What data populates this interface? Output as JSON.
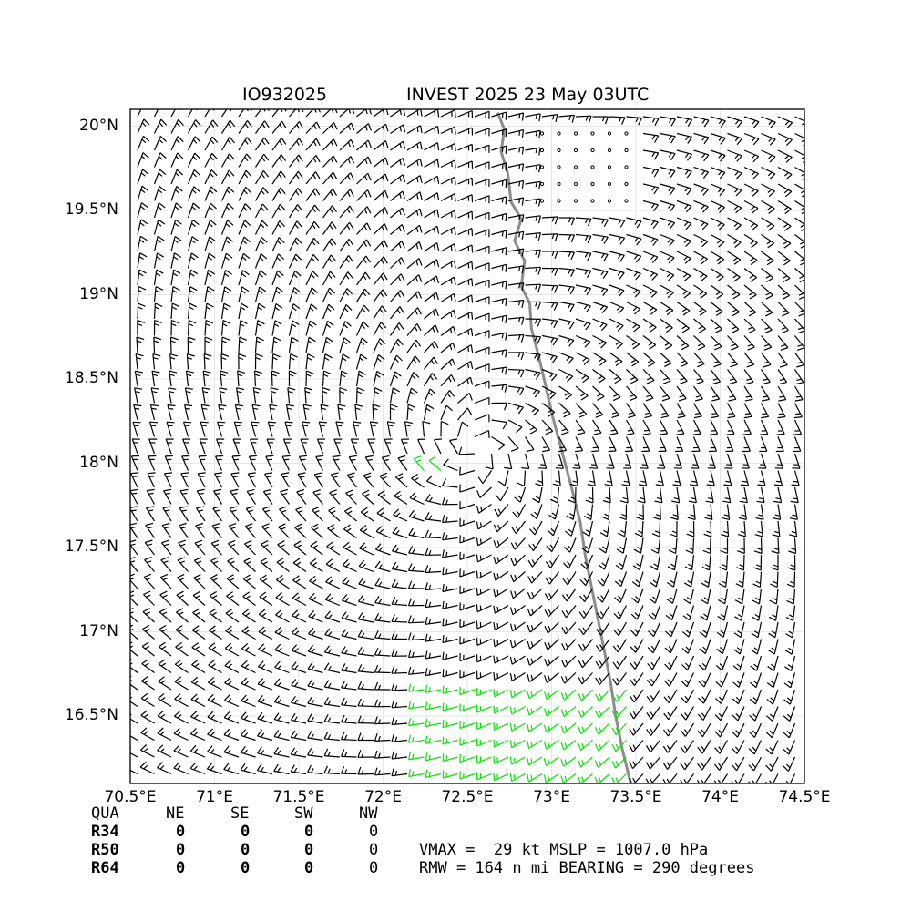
{
  "title": {
    "left": "IO932025",
    "right": "INVEST 2025 23 May 03UTC"
  },
  "map": {
    "lon_range": [
      70.5,
      74.5
    ],
    "lat_range": [
      16.1,
      20.1
    ],
    "x_ticks": [
      {
        "value": 70.5,
        "label": "70.5°E"
      },
      {
        "value": 71.0,
        "label": "71°E"
      },
      {
        "value": 71.5,
        "label": "71.5°E"
      },
      {
        "value": 72.0,
        "label": "72°E"
      },
      {
        "value": 72.5,
        "label": "72.5°E"
      },
      {
        "value": 73.0,
        "label": "73°E"
      },
      {
        "value": 73.5,
        "label": "73.5°E"
      },
      {
        "value": 74.0,
        "label": "74°E"
      },
      {
        "value": 74.5,
        "label": "74.5°E"
      }
    ],
    "y_ticks": [
      {
        "value": 20.0,
        "label": "20°N"
      },
      {
        "value": 19.5,
        "label": "19.5°N"
      },
      {
        "value": 19.0,
        "label": "19°N"
      },
      {
        "value": 18.5,
        "label": "18.5°N"
      },
      {
        "value": 18.0,
        "label": "18°N"
      },
      {
        "value": 17.5,
        "label": "17.5°N"
      },
      {
        "value": 17.0,
        "label": "17°N"
      },
      {
        "value": 16.5,
        "label": "16.5°N"
      }
    ],
    "grid": true,
    "storm_center": {
      "lon": 72.55,
      "lat": 18.08
    },
    "vortex_rotation": "counterclockwise",
    "barb_colors": {
      "normal": "#000000",
      "gale": "#00e600"
    },
    "coastline_color": "#8c8c8c",
    "coastline": [
      [
        72.68,
        20.08
      ],
      [
        72.72,
        19.98
      ],
      [
        72.7,
        19.85
      ],
      [
        72.74,
        19.72
      ],
      [
        72.76,
        19.55
      ],
      [
        72.82,
        19.45
      ],
      [
        72.78,
        19.32
      ],
      [
        72.84,
        19.2
      ],
      [
        72.82,
        19.05
      ],
      [
        72.87,
        18.95
      ],
      [
        72.88,
        18.8
      ],
      [
        72.92,
        18.65
      ],
      [
        72.96,
        18.48
      ],
      [
        73.0,
        18.3
      ],
      [
        73.04,
        18.15
      ],
      [
        73.08,
        18.0
      ],
      [
        73.12,
        17.85
      ],
      [
        73.17,
        17.65
      ],
      [
        73.2,
        17.45
      ],
      [
        73.24,
        17.25
      ],
      [
        73.28,
        17.05
      ],
      [
        73.32,
        16.85
      ],
      [
        73.35,
        16.7
      ],
      [
        73.38,
        16.5
      ],
      [
        73.42,
        16.3
      ],
      [
        73.47,
        16.1
      ]
    ],
    "calm_zone": {
      "lon": [
        72.85,
        73.45
      ],
      "lat": [
        19.55,
        19.98
      ]
    }
  },
  "radii_table": {
    "header": [
      "QUA",
      "NE",
      "SE",
      "SW",
      "NW"
    ],
    "rows": [
      {
        "label": "R34",
        "values": [
          "0",
          "0",
          "0",
          "0"
        ]
      },
      {
        "label": "R50",
        "values": [
          "0",
          "0",
          "0",
          "0"
        ]
      },
      {
        "label": "R64",
        "values": [
          "0",
          "0",
          "0",
          "0"
        ]
      }
    ]
  },
  "stats": {
    "line1": "VMAX =  29 kt MSLP = 1007.0 hPa",
    "line2": "RMW = 164 n mi BEARING = 290 degrees"
  }
}
